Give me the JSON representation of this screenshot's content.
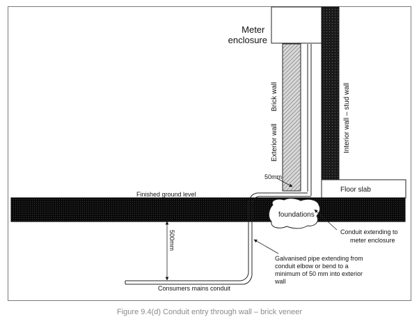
{
  "figure": {
    "caption": "Figure 9.4(d) Conduit entry through wall – brick veneer"
  },
  "labels": {
    "meter_line1": "Meter",
    "meter_line2": "enclosure",
    "exterior_wall": "Exterior wall",
    "brick_wall": "Brick wall",
    "interior_wall": "Interior wall – stud wall",
    "dim_50mm": "50mm",
    "finished_ground_level": "Finished ground level",
    "floor_slab": "Floor slab",
    "foundations": "foundations",
    "conduit_ext_line1": "Conduit extending to",
    "conduit_ext_line2": "meter enclosure",
    "dim_500mm": "500mm",
    "galv_line1": "Galvanised pipe extending from",
    "galv_line2": "conduit elbow or bend to a",
    "galv_line3": "minimum of 50 mm into exterior",
    "galv_line4": "wall",
    "consumers_conduit": "Consumers mains conduit"
  }
}
